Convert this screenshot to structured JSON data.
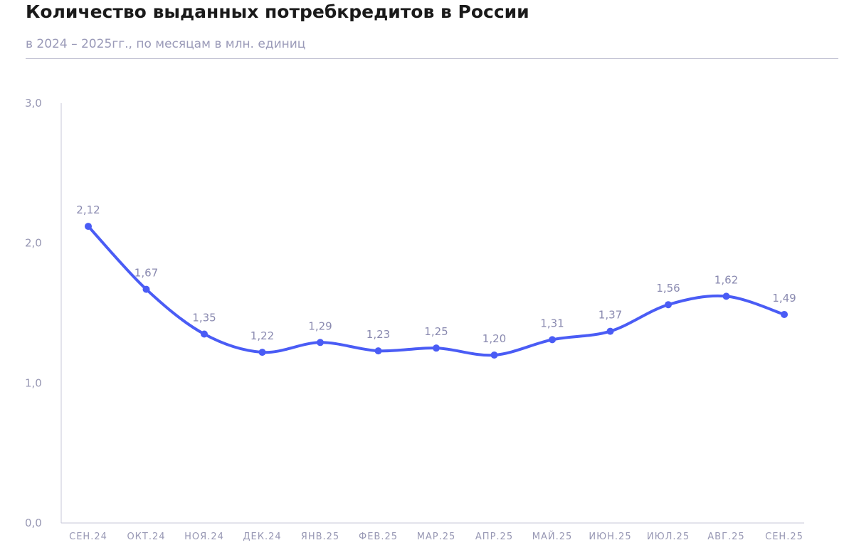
{
  "header": {
    "title": "Количество выданных потребкредитов в России",
    "subtitle": "в 2024 – 2025гг., по месяцам в млн. единиц"
  },
  "colors": {
    "line": "#4a5cf5",
    "axis": "#c7c7d8",
    "tick_text": "#9898b4",
    "data_label": "#8a8ab0"
  },
  "chart_data": {
    "type": "line",
    "title": "Количество выданных потребкредитов в России",
    "subtitle": "в 2024 – 2025гг., по месяцам в млн. единиц",
    "categories": [
      "СЕН.24",
      "ОКТ.24",
      "НОЯ.24",
      "ДЕК.24",
      "ЯНВ.25",
      "ФЕВ.25",
      "МАР.25",
      "АПР.25",
      "МАЙ.25",
      "ИЮН.25",
      "ИЮЛ.25",
      "АВГ.25",
      "СЕН.25"
    ],
    "values": [
      2.12,
      1.67,
      1.35,
      1.22,
      1.29,
      1.23,
      1.25,
      1.2,
      1.31,
      1.37,
      1.56,
      1.62,
      1.49
    ],
    "value_labels": [
      "2,12",
      "1,67",
      "1,35",
      "1,22",
      "1,29",
      "1,23",
      "1,25",
      "1,20",
      "1,31",
      "1,37",
      "1,56",
      "1,62",
      "1,49"
    ],
    "y_ticks": [
      0,
      1,
      2,
      3
    ],
    "y_tick_labels": [
      "0,0",
      "1,0",
      "2,0",
      "3,0"
    ],
    "ylim": [
      0,
      3
    ],
    "xlabel": "",
    "ylabel": "",
    "grid": false,
    "legend": "none",
    "smooth": true
  }
}
